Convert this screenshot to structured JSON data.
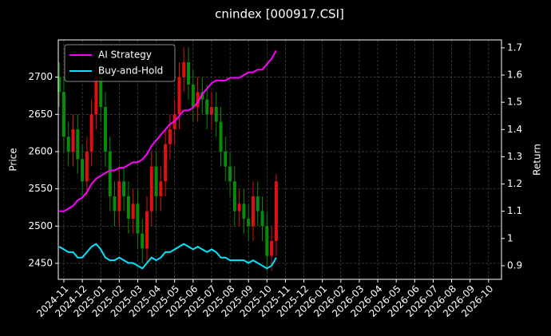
{
  "chart_data": {
    "type": "candlestick",
    "title": "cnindex [000917.CSI]",
    "ylabel": "Price",
    "y2label": "Return",
    "x": [
      -0.25,
      0,
      0.25,
      0.5,
      0.75,
      1,
      1.25,
      1.5,
      1.75,
      2,
      2.25,
      2.5,
      2.75,
      3,
      3.25,
      3.5,
      3.75,
      4,
      4.25,
      4.5,
      4.75,
      5,
      5.25,
      5.5,
      5.75,
      6,
      6.25,
      6.5,
      6.75,
      7,
      7.25,
      7.5,
      7.75,
      8,
      8.25,
      8.5,
      8.75,
      9,
      9.25,
      9.5,
      9.75,
      10,
      10.25,
      10.5,
      10.75,
      11,
      11.25,
      11.5
    ],
    "open": [
      2700,
      2680,
      2620,
      2600,
      2630,
      2590,
      2560,
      2600,
      2650,
      2700,
      2660,
      2600,
      2540,
      2520,
      2560,
      2540,
      2510,
      2530,
      2490,
      2470,
      2520,
      2580,
      2540,
      2560,
      2610,
      2630,
      2650,
      2700,
      2720,
      2690,
      2660,
      2680,
      2670,
      2650,
      2660,
      2640,
      2600,
      2580,
      2560,
      2520,
      2530,
      2510,
      2500,
      2540,
      2520,
      2500,
      2460,
      2480
    ],
    "high": [
      2720,
      2700,
      2640,
      2650,
      2650,
      2610,
      2620,
      2670,
      2720,
      2720,
      2680,
      2620,
      2560,
      2580,
      2580,
      2560,
      2550,
      2550,
      2510,
      2540,
      2600,
      2600,
      2580,
      2630,
      2650,
      2670,
      2720,
      2740,
      2740,
      2710,
      2700,
      2700,
      2690,
      2680,
      2680,
      2660,
      2620,
      2600,
      2580,
      2550,
      2550,
      2530,
      2560,
      2560,
      2540,
      2520,
      2500,
      2570
    ],
    "low": [
      2660,
      2600,
      2580,
      2580,
      2570,
      2540,
      2540,
      2580,
      2630,
      2640,
      2580,
      2520,
      2500,
      2500,
      2520,
      2490,
      2490,
      2470,
      2450,
      2450,
      2500,
      2520,
      2520,
      2540,
      2590,
      2610,
      2630,
      2680,
      2670,
      2640,
      2640,
      2650,
      2630,
      2630,
      2620,
      2580,
      2560,
      2540,
      2500,
      2500,
      2490,
      2480,
      2480,
      2500,
      2480,
      2440,
      2440,
      2460
    ],
    "close": [
      2680,
      2620,
      2600,
      2630,
      2590,
      2560,
      2600,
      2650,
      2700,
      2660,
      2600,
      2540,
      2520,
      2560,
      2540,
      2510,
      2530,
      2490,
      2470,
      2520,
      2580,
      2540,
      2560,
      2610,
      2630,
      2650,
      2700,
      2720,
      2690,
      2660,
      2680,
      2670,
      2650,
      2660,
      2640,
      2600,
      2580,
      2560,
      2520,
      2530,
      2510,
      2500,
      2540,
      2520,
      2500,
      2460,
      2480,
      2560
    ],
    "up_color": "#e01010",
    "down_color": "#0a8a0a",
    "series": [
      {
        "name": "AI Strategy",
        "color": "#ff00ff",
        "axis": "y2",
        "values": [
          1.1,
          1.1,
          1.11,
          1.12,
          1.14,
          1.15,
          1.17,
          1.2,
          1.22,
          1.23,
          1.24,
          1.25,
          1.25,
          1.26,
          1.26,
          1.27,
          1.28,
          1.28,
          1.29,
          1.31,
          1.34,
          1.36,
          1.38,
          1.4,
          1.42,
          1.43,
          1.45,
          1.47,
          1.47,
          1.48,
          1.5,
          1.53,
          1.55,
          1.57,
          1.58,
          1.58,
          1.58,
          1.59,
          1.59,
          1.59,
          1.6,
          1.61,
          1.61,
          1.62,
          1.62,
          1.64,
          1.66,
          1.69
        ]
      },
      {
        "name": "Buy-and-Hold",
        "color": "#00e5ff",
        "axis": "y2",
        "values": [
          0.97,
          0.96,
          0.95,
          0.95,
          0.93,
          0.93,
          0.95,
          0.97,
          0.98,
          0.96,
          0.93,
          0.92,
          0.92,
          0.93,
          0.92,
          0.91,
          0.91,
          0.9,
          0.89,
          0.91,
          0.93,
          0.92,
          0.93,
          0.95,
          0.95,
          0.96,
          0.97,
          0.98,
          0.97,
          0.96,
          0.97,
          0.96,
          0.95,
          0.96,
          0.95,
          0.93,
          0.93,
          0.92,
          0.92,
          0.92,
          0.92,
          0.91,
          0.92,
          0.91,
          0.9,
          0.89,
          0.9,
          0.93
        ]
      }
    ],
    "xlim": [
      -0.3,
      23.7
    ],
    "xticks": [
      {
        "value": 0,
        "label": "2024-11"
      },
      {
        "value": 1,
        "label": "2024-12"
      },
      {
        "value": 2,
        "label": "2025-01"
      },
      {
        "value": 3,
        "label": "2025-02"
      },
      {
        "value": 4,
        "label": "2025-03"
      },
      {
        "value": 5,
        "label": "2025-04"
      },
      {
        "value": 6,
        "label": "2025-05"
      },
      {
        "value": 7,
        "label": "2025-06"
      },
      {
        "value": 8,
        "label": "2025-07"
      },
      {
        "value": 9,
        "label": "2025-08"
      },
      {
        "value": 10,
        "label": "2025-09"
      },
      {
        "value": 11,
        "label": "2025-10"
      },
      {
        "value": 12,
        "label": "2025-11"
      },
      {
        "value": 13,
        "label": "2025-12"
      },
      {
        "value": 14,
        "label": "2026-01"
      },
      {
        "value": 15,
        "label": "2026-02"
      },
      {
        "value": 16,
        "label": "2026-03"
      },
      {
        "value": 17,
        "label": "2026-04"
      },
      {
        "value": 18,
        "label": "2026-05"
      },
      {
        "value": 19,
        "label": "2026-06"
      },
      {
        "value": 20,
        "label": "2026-07"
      },
      {
        "value": 21,
        "label": "2026-08"
      },
      {
        "value": 22,
        "label": "2026-09"
      },
      {
        "value": 23,
        "label": "2026-10"
      }
    ],
    "ylim": [
      2428.5,
      2750
    ],
    "yticks": [
      2450,
      2500,
      2550,
      2600,
      2650,
      2700
    ],
    "y2lim": [
      0.85,
      1.729
    ],
    "y2ticks": [
      0.9,
      1.0,
      1.1,
      1.2,
      1.3,
      1.4,
      1.5,
      1.6,
      1.7
    ],
    "grid": true,
    "legend": "upper left"
  }
}
